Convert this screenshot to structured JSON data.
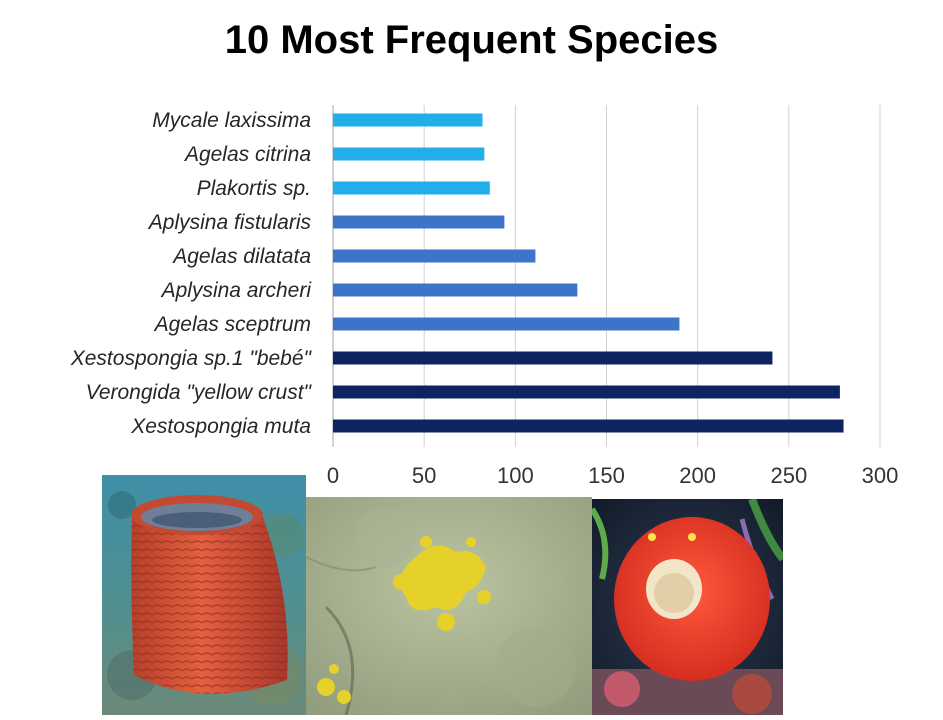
{
  "chart_data": {
    "type": "bar",
    "orientation": "horizontal",
    "title": "10 Most Frequent Species",
    "xlabel": "",
    "ylabel": "",
    "xlim": [
      0,
      300
    ],
    "xticks": [
      0,
      50,
      100,
      150,
      200,
      250,
      300
    ],
    "grid": true,
    "categories": [
      "Mycale laxissima",
      "Agelas citrina",
      "Plakortis sp.",
      "Aplysina fistularis",
      "Agelas dilatata",
      "Aplysina archeri",
      "Agelas sceptrum",
      "Xestospongia sp.1 \"bebé\"",
      "Verongida \"yellow crust\"",
      "Xestospongia muta"
    ],
    "values": [
      82,
      83,
      86,
      94,
      111,
      134,
      190,
      241,
      278,
      280
    ],
    "colors": [
      "#22aee8",
      "#22aee8",
      "#22aee8",
      "#3d73c9",
      "#3d73c9",
      "#3d73c9",
      "#3d73c9",
      "#0d2461",
      "#0d2461",
      "#0d2461"
    ]
  },
  "photos": [
    {
      "icon": "barrel-sponge-photo"
    },
    {
      "icon": "yellow-crust-sponge-photo"
    },
    {
      "icon": "red-sponge-photo"
    }
  ]
}
